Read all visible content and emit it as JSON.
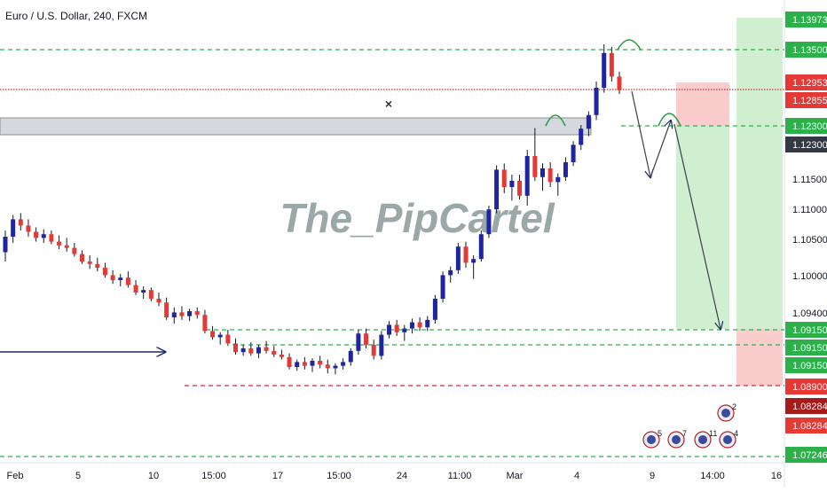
{
  "header": {
    "title": "Euro / U.S. Dollar, 240, FXCM"
  },
  "watermark": "The_PipCartel",
  "colors": {
    "up": "#1f24a0",
    "down": "#e53935",
    "wick": "#131722",
    "green_dash": "#2bb04a",
    "red_dash": "#d32f2f",
    "arrow": "#1c2a6a",
    "profit_zone": "#c8ecc8",
    "loss_zone": "#fbc6c6",
    "resistance_zone": "#d5d8dc"
  },
  "chart_data": {
    "type": "candlestick",
    "x_ticks": [
      "Feb",
      "5",
      "10",
      "15:00",
      "17",
      "15:00",
      "24",
      "11:00",
      "Mar",
      "4",
      "9",
      "14:00",
      "16"
    ],
    "price_labels": [
      {
        "value": "1.13973",
        "style": "green"
      },
      {
        "value": "1.13500",
        "style": "green"
      },
      {
        "value": "1.12953",
        "style": "red"
      },
      {
        "value": "1.12855",
        "style": "red"
      },
      {
        "value": "1.12300",
        "style": "green"
      },
      {
        "value": "1.12300",
        "style": "dark"
      },
      {
        "value": "1.11500",
        "style": "plain"
      },
      {
        "value": "1.11000",
        "style": "plain"
      },
      {
        "value": "1.10500",
        "style": "plain"
      },
      {
        "value": "1.10000",
        "style": "plain"
      },
      {
        "value": "1.09400",
        "style": "plain"
      },
      {
        "value": "1.09150",
        "style": "green"
      },
      {
        "value": "1.09150",
        "style": "green"
      },
      {
        "value": "1.09150",
        "style": "green"
      },
      {
        "value": "1.08900",
        "style": "red"
      },
      {
        "value": "1.08284",
        "style": "darkred"
      },
      {
        "value": "1.08284",
        "style": "red"
      },
      {
        "value": "1.07246",
        "style": "green"
      }
    ],
    "horizontal_levels": [
      {
        "price": 1.135,
        "style": "green-dash"
      },
      {
        "price": 1.1295,
        "style": "red-dot"
      },
      {
        "price": 1.123,
        "style": "green-dash"
      },
      {
        "price": 1.0918,
        "style": "green-dash"
      },
      {
        "price": 1.0903,
        "style": "green-dash"
      },
      {
        "price": 1.0883,
        "style": "red-dash"
      },
      {
        "price": 1.0725,
        "style": "green-dash"
      }
    ],
    "event_badges": [
      "5",
      "7",
      "11",
      "2",
      "4"
    ],
    "ohlc": [
      [
        1.1035,
        1.107,
        1.102,
        1.106
      ],
      [
        1.106,
        1.1095,
        1.105,
        1.1088
      ],
      [
        1.1088,
        1.1098,
        1.107,
        1.1078
      ],
      [
        1.1078,
        1.1088,
        1.106,
        1.1068
      ],
      [
        1.1068,
        1.1075,
        1.1052,
        1.1058
      ],
      [
        1.1058,
        1.1072,
        1.105,
        1.1064
      ],
      [
        1.1064,
        1.107,
        1.1048,
        1.1052
      ],
      [
        1.1052,
        1.1062,
        1.104,
        1.1046
      ],
      [
        1.1046,
        1.1058,
        1.1036,
        1.1042
      ],
      [
        1.1042,
        1.105,
        1.1028,
        1.1032
      ],
      [
        1.1032,
        1.1038,
        1.1016,
        1.102
      ],
      [
        1.102,
        1.103,
        1.1008,
        1.1016
      ],
      [
        1.1016,
        1.1026,
        1.1004,
        1.101
      ],
      [
        1.101,
        1.1018,
        1.0994,
        1.0998
      ],
      [
        1.0998,
        1.1006,
        1.0984,
        1.099
      ],
      [
        1.099,
        1.1,
        1.098,
        1.0994
      ],
      [
        1.0994,
        1.1004,
        1.0978,
        1.0982
      ],
      [
        1.0982,
        1.099,
        1.0966,
        1.097
      ],
      [
        1.097,
        1.098,
        1.096,
        1.0974
      ],
      [
        1.0974,
        1.0978,
        1.0956,
        1.096
      ],
      [
        1.096,
        1.097,
        1.0948,
        1.0954
      ],
      [
        1.0954,
        1.0962,
        1.0926,
        1.093
      ],
      [
        1.093,
        1.0946,
        1.092,
        1.0938
      ],
      [
        1.0938,
        1.0948,
        1.0926,
        1.0932
      ],
      [
        1.0932,
        1.0944,
        1.0924,
        1.094
      ],
      [
        1.094,
        1.0946,
        1.0928,
        1.0934
      ],
      [
        1.0934,
        1.0942,
        1.0904,
        1.0908
      ],
      [
        1.0908,
        1.0916,
        1.0894,
        1.0898
      ],
      [
        1.0898,
        1.0906,
        1.0886,
        1.0902
      ],
      [
        1.0902,
        1.091,
        1.0884,
        1.0888
      ],
      [
        1.0888,
        1.0896,
        1.087,
        1.0874
      ],
      [
        1.0874,
        1.0886,
        1.0868,
        1.088
      ],
      [
        1.088,
        1.089,
        1.0868,
        1.0872
      ],
      [
        1.0872,
        1.0886,
        1.0864,
        1.0882
      ],
      [
        1.0882,
        1.0892,
        1.0872,
        1.0876
      ],
      [
        1.0876,
        1.0884,
        1.0866,
        1.087
      ],
      [
        1.087,
        1.0878,
        1.0862,
        1.0866
      ],
      [
        1.0866,
        1.0872,
        1.0846,
        1.085
      ],
      [
        1.085,
        1.0862,
        1.0844,
        1.0858
      ],
      [
        1.0858,
        1.0866,
        1.0846,
        1.0852
      ],
      [
        1.0852,
        1.0864,
        1.0842,
        1.086
      ],
      [
        1.086,
        1.0868,
        1.0848,
        1.0854
      ],
      [
        1.0854,
        1.0862,
        1.084,
        1.0848
      ],
      [
        1.0848,
        1.0856,
        1.0838,
        1.0852
      ],
      [
        1.0852,
        1.0864,
        1.0846,
        1.0858
      ],
      [
        1.0858,
        1.088,
        1.0852,
        1.0876
      ],
      [
        1.0876,
        1.091,
        1.087,
        1.0904
      ],
      [
        1.0904,
        1.0912,
        1.088,
        1.0886
      ],
      [
        1.0886,
        1.0894,
        1.0862,
        1.0868
      ],
      [
        1.0868,
        1.0908,
        1.0862,
        1.0902
      ],
      [
        1.0902,
        1.0924,
        1.0896,
        1.0918
      ],
      [
        1.0918,
        1.0926,
        1.09,
        1.0906
      ],
      [
        1.0906,
        1.0918,
        1.0892,
        1.0912
      ],
      [
        1.0912,
        1.0928,
        1.0904,
        1.0922
      ],
      [
        1.0922,
        1.093,
        1.0908,
        1.0914
      ],
      [
        1.0914,
        1.0932,
        1.0908,
        1.0926
      ],
      [
        1.0926,
        1.0966,
        1.092,
        1.096
      ],
      [
        1.096,
        1.1004,
        1.0954,
        1.0998
      ],
      [
        1.0998,
        1.1012,
        1.0986,
        1.1006
      ],
      [
        1.1006,
        1.105,
        1.1,
        1.1044
      ],
      [
        1.1044,
        1.1052,
        1.101,
        1.1018
      ],
      [
        1.1018,
        1.103,
        1.0992,
        1.1024
      ],
      [
        1.1024,
        1.107,
        1.102,
        1.1064
      ],
      [
        1.1064,
        1.111,
        1.1058,
        1.1104
      ],
      [
        1.1104,
        1.1175,
        1.1098,
        1.1168
      ],
      [
        1.1168,
        1.1178,
        1.113,
        1.114
      ],
      [
        1.114,
        1.116,
        1.1118,
        1.115
      ],
      [
        1.115,
        1.116,
        1.112,
        1.1126
      ],
      [
        1.1126,
        1.12,
        1.111,
        1.119
      ],
      [
        1.119,
        1.1235,
        1.115,
        1.1156
      ],
      [
        1.1156,
        1.1178,
        1.1134,
        1.117
      ],
      [
        1.117,
        1.118,
        1.114,
        1.1148
      ],
      [
        1.1148,
        1.1162,
        1.1126,
        1.1156
      ],
      [
        1.1156,
        1.1188,
        1.115,
        1.118
      ],
      [
        1.118,
        1.1214,
        1.1174,
        1.1208
      ],
      [
        1.1208,
        1.124,
        1.12,
        1.1234
      ],
      [
        1.1234,
        1.1262,
        1.1222,
        1.1256
      ],
      [
        1.1256,
        1.131,
        1.1248,
        1.13
      ],
      [
        1.13,
        1.137,
        1.1292,
        1.1356
      ],
      [
        1.1356,
        1.1366,
        1.131,
        1.1318
      ],
      [
        1.1318,
        1.1326,
        1.129,
        1.1296
      ]
    ]
  }
}
